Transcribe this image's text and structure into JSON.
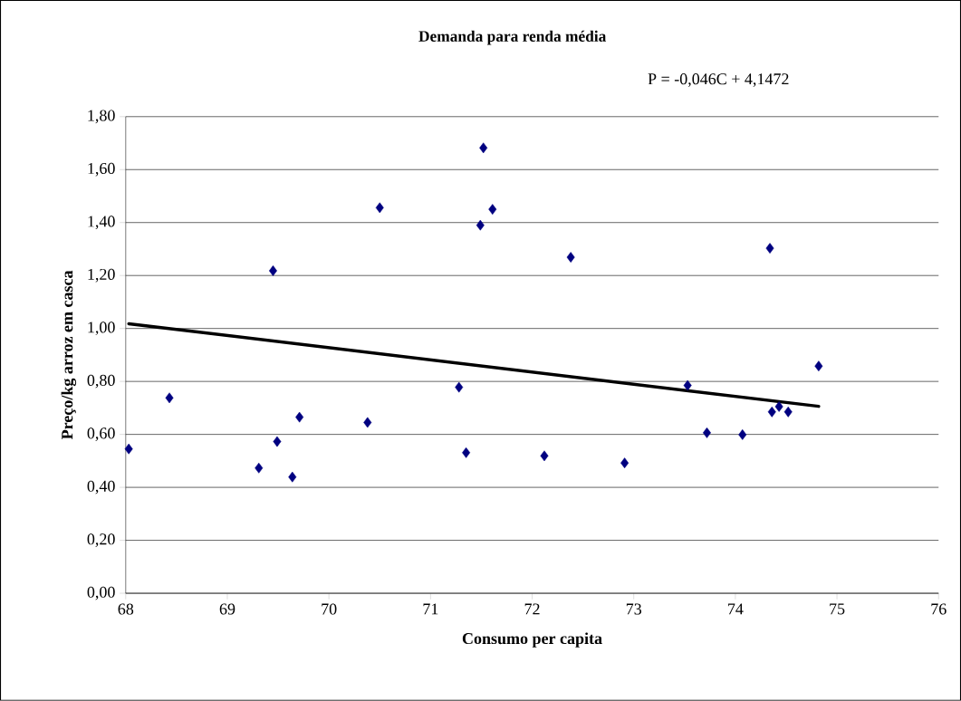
{
  "chart_data": {
    "type": "scatter",
    "title": "Demanda para renda média",
    "xlabel": "Consumo per capita",
    "ylabel": "Preço/kg arroz em casca",
    "annotations": [
      "P = -0,046C + 4,1472"
    ],
    "xlim": [
      68,
      76
    ],
    "xticks": [
      68,
      69,
      70,
      71,
      72,
      73,
      74,
      75,
      76
    ],
    "ylim": [
      0,
      1.8
    ],
    "yticks": [
      {
        "value": 0,
        "label": "0,00"
      },
      {
        "value": 0.2,
        "label": "0,20"
      },
      {
        "value": 0.4,
        "label": "0,40"
      },
      {
        "value": 0.6,
        "label": "0,60"
      },
      {
        "value": 0.8,
        "label": "0,80"
      },
      {
        "value": 1.0,
        "label": "1,00"
      },
      {
        "value": 1.2,
        "label": "1,20"
      },
      {
        "value": 1.4,
        "label": "1,40"
      },
      {
        "value": 1.6,
        "label": "1,60"
      },
      {
        "value": 1.8,
        "label": "1,80"
      }
    ],
    "grid": "y",
    "marker": "diamond",
    "series": [
      {
        "color": "#000080",
        "x": [
          68.03,
          68.43,
          69.31,
          69.45,
          69.49,
          69.64,
          69.71,
          70.38,
          70.5,
          71.28,
          71.35,
          71.49,
          71.52,
          71.61,
          72.12,
          72.38,
          72.91,
          73.53,
          73.72,
          74.07,
          74.34,
          74.36,
          74.43,
          74.52,
          74.82
        ],
        "values": [
          0.545,
          0.738,
          0.473,
          1.218,
          0.573,
          0.439,
          0.665,
          0.645,
          1.456,
          0.778,
          0.531,
          1.39,
          1.682,
          1.45,
          0.519,
          1.269,
          0.492,
          0.785,
          0.606,
          0.599,
          1.303,
          0.685,
          0.705,
          0.685,
          0.858
        ]
      },
      {
        "type": "line",
        "marker": "none",
        "color": "#000000",
        "x": [
          68.03,
          74.82
        ],
        "values": [
          1.018,
          0.706
        ]
      }
    ]
  }
}
